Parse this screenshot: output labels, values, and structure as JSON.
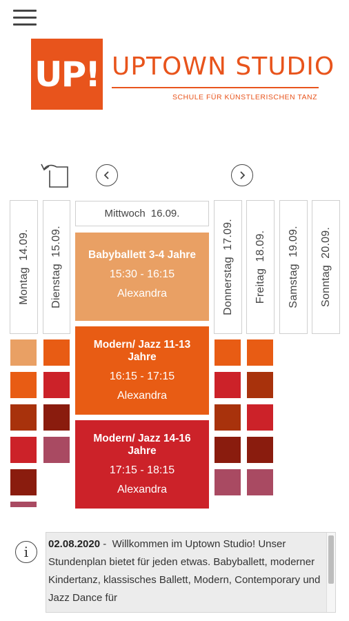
{
  "header": {
    "menu_icon": "hamburger-menu-icon"
  },
  "logo": {
    "badge": "UP!",
    "title": "UPTOWN STUDIO",
    "subtitle": "SCHULE FÜR KÜNSTLERISCHEN TANZ",
    "color": "#e8541c"
  },
  "nav": {
    "back_icon": "return-arrow-icon",
    "prev_icon": "chevron-left-icon",
    "next_icon": "chevron-right-icon"
  },
  "days": [
    {
      "name": "Montag",
      "date": "14.09."
    },
    {
      "name": "Dienstag",
      "date": "15.09."
    },
    {
      "name": "Mittwoch",
      "date": "16.09."
    },
    {
      "name": "Donnerstag",
      "date": "17.09."
    },
    {
      "name": "Freitag",
      "date": "18.09."
    },
    {
      "name": "Samstag",
      "date": "19.09."
    },
    {
      "name": "Sonntag",
      "date": "20.09."
    }
  ],
  "courses": [
    {
      "name": "Babyballett 3-4 Jahre",
      "time": "15:30 - 16:15",
      "teacher": "Alexandra",
      "color": "#e9a064"
    },
    {
      "name": "Modern/ Jazz 11-13 Jahre",
      "time": "16:15 - 17:15",
      "teacher": "Alexandra",
      "color": "#e85c14"
    },
    {
      "name": "Modern/ Jazz 14-16 Jahre",
      "time": "17:15 - 18:15",
      "teacher": "Alexandra",
      "color": "#cc2229"
    }
  ],
  "palette": {
    "light_orange": "#e9a064",
    "orange": "#e85c14",
    "red": "#cc2229",
    "rust": "#a8320c",
    "dark_red": "#8a1c0e",
    "mauve": "#a94a62"
  },
  "news": {
    "icon": "info-icon",
    "date": "02.08.2020",
    "separator": " - ",
    "text": "Willkommen im Uptown Studio! Unser Stundenplan bietet für jeden etwas. Babyballett, moderner Kindertanz, klassisches Ballett, Modern, Contemporary und Jazz Dance für"
  }
}
